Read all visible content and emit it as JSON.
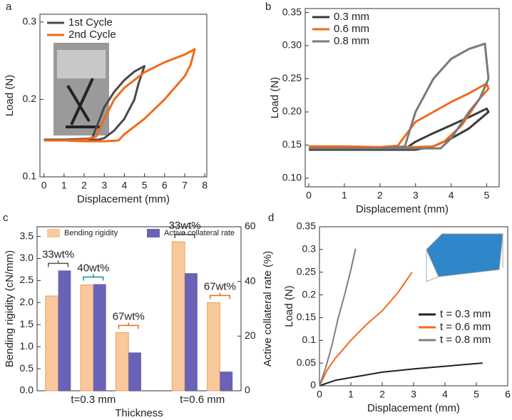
{
  "chart_data": [
    {
      "type": "line",
      "panel_label": "a",
      "xlabel": "Displacement (mm)",
      "ylabel": "Load (N)",
      "xlim": [
        -0.2,
        8.1
      ],
      "xticks": [
        0,
        1,
        2,
        3,
        4,
        5,
        6,
        7,
        8
      ],
      "ylim": [
        0.1,
        0.31
      ],
      "yticks": [
        0.1,
        0.2,
        0.3
      ],
      "legend": "upper left",
      "series": [
        {
          "name": "1st Cycle",
          "color": "#4a4a4a",
          "x": [
            0,
            1,
            2,
            2.4,
            2.7,
            3,
            3.5,
            4,
            4.5,
            5,
            4.7,
            4.5,
            4,
            3.5,
            3,
            2.7,
            2,
            1,
            0
          ],
          "values": [
            0.148,
            0.148,
            0.149,
            0.15,
            0.17,
            0.19,
            0.21,
            0.225,
            0.236,
            0.243,
            0.22,
            0.2,
            0.175,
            0.16,
            0.15,
            0.148,
            0.148,
            0.148,
            0.148
          ]
        },
        {
          "name": "2nd Cycle",
          "color": "#f26a1b",
          "x": [
            0,
            1,
            2,
            2.6,
            3,
            3.5,
            4,
            5,
            6,
            7,
            7.5,
            7.3,
            7,
            6,
            5,
            4,
            3.7,
            3,
            2,
            1,
            0
          ],
          "values": [
            0.147,
            0.147,
            0.148,
            0.152,
            0.175,
            0.2,
            0.215,
            0.235,
            0.248,
            0.258,
            0.265,
            0.245,
            0.23,
            0.2,
            0.175,
            0.155,
            0.147,
            0.146,
            0.146,
            0.147,
            0.147
          ]
        }
      ]
    },
    {
      "type": "line",
      "panel_label": "b",
      "xlabel": "Displacement (mm)",
      "ylabel": "Load (N)",
      "xlim": [
        -0.1,
        5.35
      ],
      "xticks": [
        0,
        1,
        2,
        3,
        4,
        5
      ],
      "ylim": [
        0.087,
        0.356
      ],
      "yticks": [
        {
          "value": 0.1,
          "label": "0.10"
        },
        0.15,
        {
          "value": 0.2,
          "label": "0.20"
        },
        0.25,
        {
          "value": 0.3,
          "label": "0.30"
        },
        0.35
      ],
      "legend": "upper left",
      "series": [
        {
          "name": "0.3 mm",
          "color": "#3a3a3a",
          "x": [
            0,
            1,
            2,
            2.7,
            3,
            3.5,
            4,
            4.5,
            5,
            5.05,
            4.5,
            4,
            3.5,
            3,
            2,
            1,
            0
          ],
          "values": [
            0.143,
            0.143,
            0.143,
            0.144,
            0.155,
            0.168,
            0.18,
            0.192,
            0.205,
            0.2,
            0.175,
            0.16,
            0.148,
            0.143,
            0.143,
            0.143,
            0.143
          ]
        },
        {
          "name": "0.6 mm",
          "color": "#f26a1b",
          "x": [
            0,
            1,
            2,
            2.5,
            3,
            3.5,
            4,
            4.5,
            5,
            5.05,
            4.8,
            4.3,
            3.8,
            3.5,
            3,
            2,
            1,
            0
          ],
          "values": [
            0.148,
            0.148,
            0.147,
            0.149,
            0.185,
            0.2,
            0.215,
            0.228,
            0.243,
            0.235,
            0.22,
            0.18,
            0.155,
            0.148,
            0.147,
            0.147,
            0.147,
            0.148
          ]
        },
        {
          "name": "0.8 mm",
          "color": "#7a7a7a",
          "x": [
            0,
            1,
            2,
            2.7,
            3,
            3.5,
            4,
            4.5,
            4.95,
            5.05,
            4.8,
            4.5,
            4,
            3.7,
            3,
            2,
            1,
            0
          ],
          "values": [
            0.145,
            0.145,
            0.145,
            0.148,
            0.2,
            0.25,
            0.28,
            0.295,
            0.303,
            0.25,
            0.22,
            0.2,
            0.16,
            0.145,
            0.145,
            0.145,
            0.145,
            0.145
          ]
        }
      ]
    },
    {
      "type": "bar",
      "panel_label": "c",
      "xlabel": "Thickness",
      "ylabel": "Bending rigidity (cN/mm)",
      "y2label": "Active collateral rate (%)",
      "categories": [
        "33wt%",
        "40wt%",
        "67wt%",
        "33wt%",
        "67wt%"
      ],
      "category_colors": [
        "#555555",
        "#1a8a9a",
        "#f26a1b",
        "#555555",
        "#f26a1b"
      ],
      "group_labels": [
        "t=0.3 mm",
        "t=0.6 mm"
      ],
      "ylim": [
        0,
        3.72
      ],
      "yticks": [
        {
          "value": 0,
          "label": "0.0"
        },
        0.5,
        {
          "value": 1,
          "label": "1.0"
        },
        1.5,
        {
          "value": 2,
          "label": "2.0"
        },
        2.5,
        {
          "value": 3,
          "label": "3.0"
        },
        3.5
      ],
      "y2lim": [
        0,
        60
      ],
      "y2ticks": [
        0,
        20,
        40,
        60
      ],
      "legend": "top",
      "series": [
        {
          "name": "Bending rigidity",
          "color": "#f9c89b",
          "values": [
            2.15,
            2.4,
            1.32,
            3.38,
            2.0
          ]
        },
        {
          "name": "Active collateral rate",
          "color": "#6a62b6",
          "axis": "y2",
          "values": [
            44,
            39,
            14,
            43,
            7
          ]
        }
      ]
    },
    {
      "type": "line",
      "panel_label": "d",
      "xlabel": "Displacement (mm)",
      "ylabel": "Load (N)",
      "xlim": [
        0,
        6
      ],
      "xticks": [
        0,
        1,
        2,
        3,
        4,
        5,
        6
      ],
      "ylim": [
        0,
        0.35
      ],
      "yticks": [
        0,
        0.05,
        0.1,
        0.15,
        0.2,
        0.25,
        0.3,
        0.35
      ],
      "legend": "lower right",
      "series": [
        {
          "name": "t = 0.3 mm",
          "color": "#222222",
          "x": [
            0,
            0.5,
            1,
            2,
            3,
            4,
            5.2
          ],
          "values": [
            0,
            0.012,
            0.018,
            0.03,
            0.037,
            0.043,
            0.05
          ]
        },
        {
          "name": "t = 0.6 mm",
          "color": "#f26a1b",
          "x": [
            0,
            0.25,
            0.5,
            1,
            1.5,
            2,
            2.5,
            2.95
          ],
          "values": [
            0,
            0.035,
            0.06,
            0.1,
            0.135,
            0.165,
            0.205,
            0.25
          ]
        },
        {
          "name": "t = 0.8 mm",
          "color": "#808080",
          "x": [
            0,
            0.2,
            0.4,
            0.6,
            0.8,
            1,
            1.15
          ],
          "values": [
            0,
            0.04,
            0.09,
            0.15,
            0.2,
            0.255,
            0.302
          ]
        }
      ]
    }
  ]
}
